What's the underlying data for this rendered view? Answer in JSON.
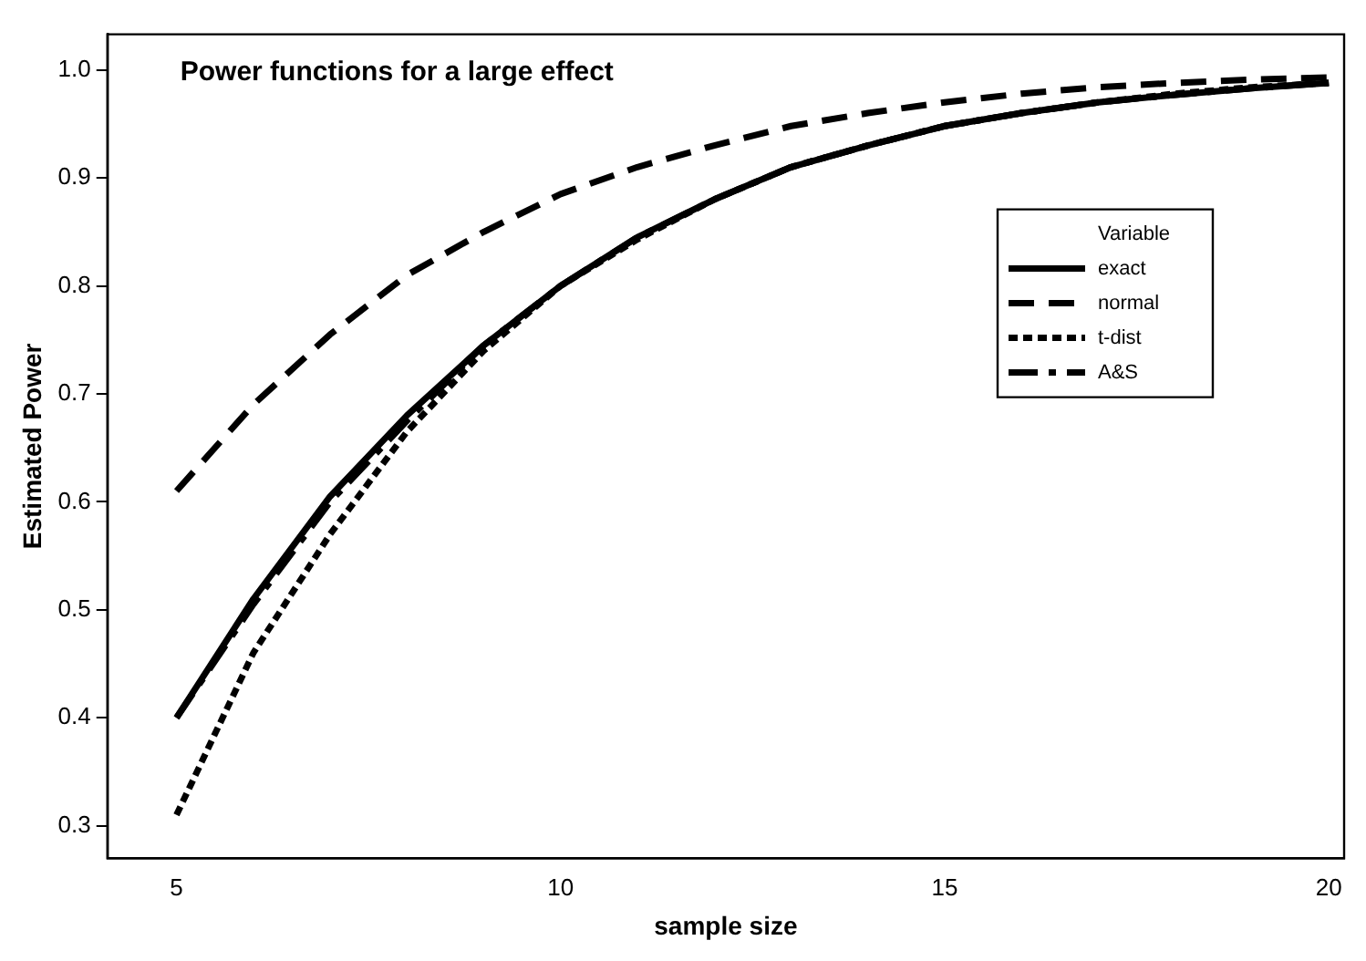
{
  "chart_data": {
    "type": "line",
    "title": "Power functions for a large effect",
    "xlabel": "sample size",
    "ylabel": "Estimated Power",
    "legend_title": "Variable",
    "legend": "top right",
    "grid": false,
    "marker": "none",
    "x": [
      5,
      6,
      7,
      8,
      9,
      10,
      11,
      12,
      13,
      14,
      15,
      16,
      17,
      18,
      19,
      20
    ],
    "xlim": [
      4.1,
      20.2
    ],
    "xticks": [
      5,
      10,
      15,
      20
    ],
    "ylim": [
      0.27,
      1.033
    ],
    "yticks": [
      {
        "value": 0.3,
        "label": "0.3"
      },
      {
        "value": 0.4,
        "label": "0.4"
      },
      {
        "value": 0.5,
        "label": "0.5"
      },
      {
        "value": 0.6,
        "label": "0.6"
      },
      {
        "value": 0.7,
        "label": "0.7"
      },
      {
        "value": 0.8,
        "label": "0.8"
      },
      {
        "value": 0.9,
        "label": "0.9"
      },
      {
        "value": 1.0,
        "label": "1.0"
      }
    ],
    "series": [
      {
        "name": "exact",
        "color": "#000000",
        "line_style": "solid",
        "values": [
          0.4,
          0.51,
          0.605,
          0.68,
          0.745,
          0.8,
          0.845,
          0.88,
          0.91,
          0.93,
          0.948,
          0.96,
          0.97,
          0.977,
          0.983,
          0.988
        ]
      },
      {
        "name": "normal",
        "color": "#000000",
        "line_style": "dashed",
        "values": [
          0.61,
          0.69,
          0.755,
          0.81,
          0.85,
          0.885,
          0.91,
          0.93,
          0.948,
          0.96,
          0.97,
          0.978,
          0.984,
          0.988,
          0.991,
          0.993
        ]
      },
      {
        "name": "t-dist",
        "color": "#000000",
        "line_style": "dotted",
        "values": [
          0.31,
          0.46,
          0.57,
          0.665,
          0.74,
          0.8,
          0.843,
          0.88,
          0.91,
          0.93,
          0.948,
          0.96,
          0.97,
          0.978,
          0.984,
          0.988
        ]
      },
      {
        "name": "A&S",
        "color": "#000000",
        "line_style": "dashdot",
        "values": [
          0.4,
          0.505,
          0.6,
          0.675,
          0.745,
          0.8,
          0.845,
          0.88,
          0.91,
          0.93,
          0.948,
          0.96,
          0.97,
          0.977,
          0.983,
          0.988
        ]
      }
    ]
  }
}
